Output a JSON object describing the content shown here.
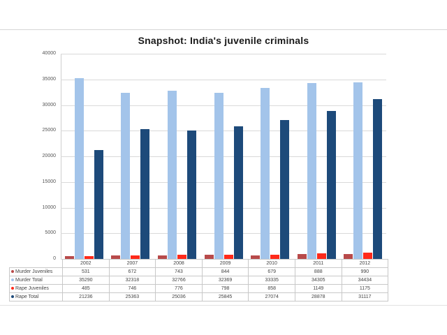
{
  "page": {
    "title": "Snapshot: India's juvenile criminals"
  },
  "chart_data": {
    "type": "bar",
    "title": "Snapshot: India's juvenile criminals",
    "xlabel": "",
    "ylabel": "",
    "ylim": [
      0,
      40000
    ],
    "yticks": [
      0,
      5000,
      10000,
      15000,
      20000,
      25000,
      30000,
      35000,
      40000
    ],
    "grid": true,
    "legend_position": "data-table",
    "categories": [
      "2002",
      "2007",
      "2008",
      "2009",
      "2010",
      "2011",
      "2012"
    ],
    "series": [
      {
        "name": "Murder Juveniles",
        "color": "#b84a4a",
        "values": [
          531,
          672,
          743,
          844,
          679,
          888,
          990
        ]
      },
      {
        "name": "Murder Total",
        "color": "#a3c4ea",
        "values": [
          35290,
          32318,
          32766,
          32369,
          33335,
          34305,
          34434
        ]
      },
      {
        "name": "Rape Juveniles",
        "color": "#ff2a1a",
        "values": [
          485,
          746,
          776,
          798,
          858,
          1149,
          1175
        ]
      },
      {
        "name": "Rape Total",
        "color": "#1d4a7a",
        "values": [
          21236,
          25363,
          25036,
          25845,
          27074,
          28878,
          31117
        ]
      }
    ]
  },
  "table": {
    "rows": [
      {
        "label": "Murder Juveniles",
        "values": [
          "531",
          "672",
          "743",
          "844",
          "679",
          "888",
          "990"
        ]
      },
      {
        "label": "Murder Total",
        "values": [
          "35290",
          "32318",
          "32766",
          "32369",
          "33335",
          "34305",
          "34434"
        ]
      },
      {
        "label": "Rape Juveniles",
        "values": [
          "485",
          "746",
          "776",
          "798",
          "858",
          "1149",
          "1175"
        ]
      },
      {
        "label": "Rape Total",
        "values": [
          "21236",
          "25363",
          "25036",
          "25845",
          "27074",
          "28878",
          "31117"
        ]
      }
    ]
  }
}
